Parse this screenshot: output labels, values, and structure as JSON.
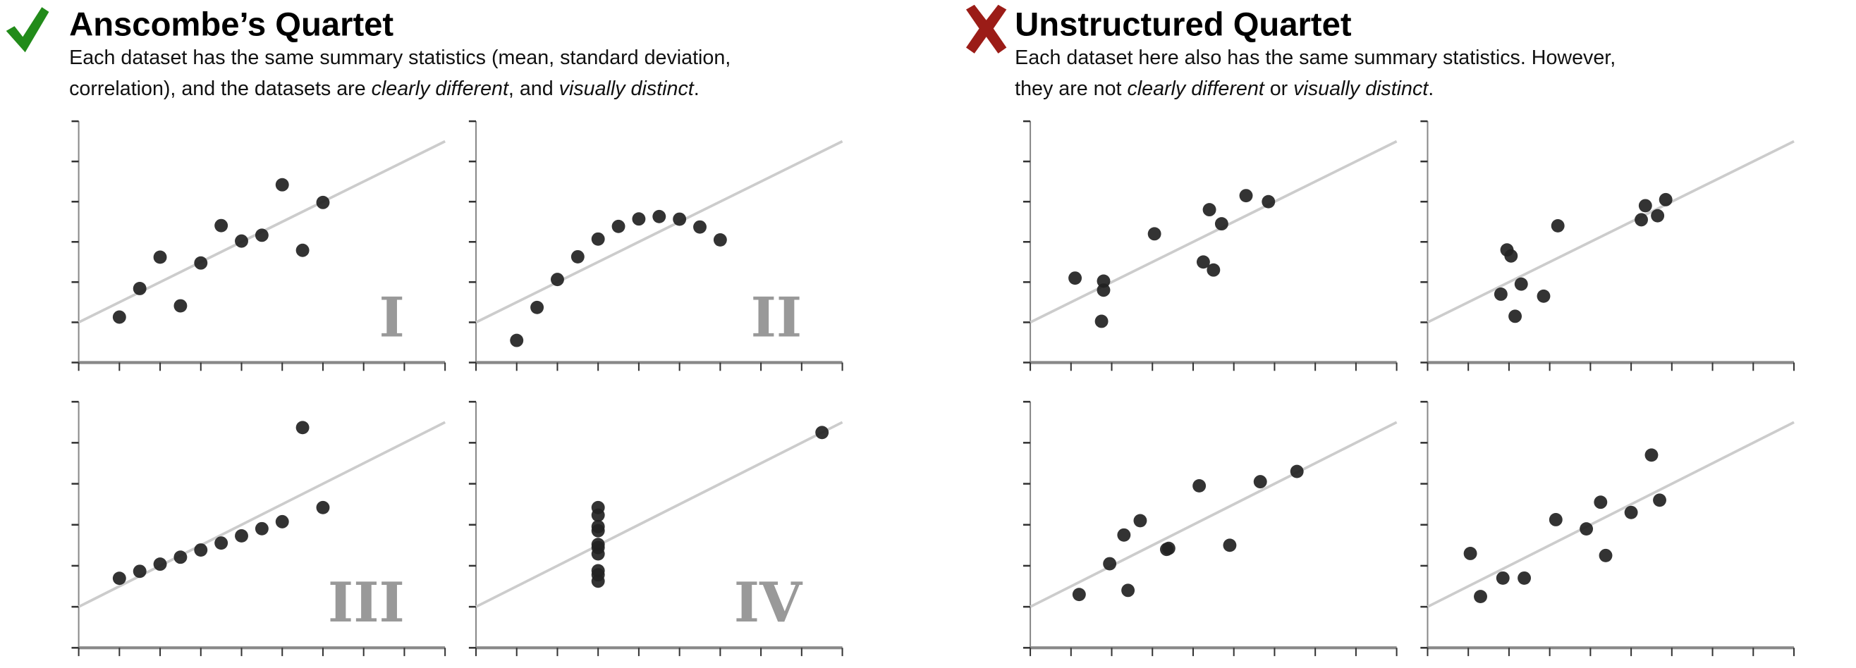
{
  "left": {
    "title": "Anscombe’s Quartet",
    "icon": "check-icon",
    "icon_color": "#228b1a",
    "subtitle_line1": "Each dataset has the same summary statistics (mean, standard deviation,",
    "subtitle_line2_a": "correlation), and the datasets are ",
    "subtitle_line2_b": "clearly different",
    "subtitle_line2_c": ", and ",
    "subtitle_line2_d": "visually distinct",
    "subtitle_line2_e": "."
  },
  "right": {
    "title": "Unstructured Quartet",
    "icon": "cross-icon",
    "icon_color": "#9b1c17",
    "subtitle_line1": "Each dataset here also has the same summary statistics. However,",
    "subtitle_line2_a": "they are not ",
    "subtitle_line2_b": "clearly different",
    "subtitle_line2_c": " or ",
    "subtitle_line2_d": "visually distinct",
    "subtitle_line2_e": "."
  },
  "colors": {
    "point": "#222222",
    "regression": "#cccccc",
    "axis": "#888888",
    "numeral": "#999999"
  },
  "chart_data": [
    {
      "type": "scatter",
      "label": "I",
      "xlim": [
        2,
        20
      ],
      "ylim": [
        2,
        14
      ],
      "xticks_step": 2,
      "yticks_step": 2,
      "grid": false,
      "regression": {
        "intercept": 3,
        "slope": 0.5
      },
      "x": [
        10,
        8,
        13,
        9,
        11,
        14,
        6,
        4,
        12,
        7,
        5
      ],
      "y": [
        8.04,
        6.95,
        7.58,
        8.81,
        8.33,
        9.96,
        7.24,
        4.26,
        10.84,
        4.82,
        5.68
      ]
    },
    {
      "type": "scatter",
      "label": "II",
      "xlim": [
        2,
        20
      ],
      "ylim": [
        2,
        14
      ],
      "xticks_step": 2,
      "yticks_step": 2,
      "grid": false,
      "regression": {
        "intercept": 3,
        "slope": 0.5
      },
      "x": [
        10,
        8,
        13,
        9,
        11,
        14,
        6,
        4,
        12,
        7,
        5
      ],
      "y": [
        9.14,
        8.14,
        8.74,
        8.77,
        9.26,
        8.1,
        6.13,
        3.1,
        9.13,
        7.26,
        4.74
      ]
    },
    {
      "type": "scatter",
      "label": "III",
      "xlim": [
        2,
        20
      ],
      "ylim": [
        2,
        14
      ],
      "xticks_step": 2,
      "yticks_step": 2,
      "grid": false,
      "regression": {
        "intercept": 3,
        "slope": 0.5
      },
      "x": [
        10,
        8,
        13,
        9,
        11,
        14,
        6,
        4,
        12,
        7,
        5
      ],
      "y": [
        7.46,
        6.77,
        12.74,
        7.11,
        7.81,
        8.84,
        6.08,
        5.39,
        8.15,
        6.42,
        5.73
      ]
    },
    {
      "type": "scatter",
      "label": "IV",
      "xlim": [
        2,
        20
      ],
      "ylim": [
        2,
        14
      ],
      "xticks_step": 2,
      "yticks_step": 2,
      "grid": false,
      "regression": {
        "intercept": 3,
        "slope": 0.5
      },
      "x": [
        8,
        8,
        8,
        8,
        8,
        8,
        8,
        19,
        8,
        8,
        8
      ],
      "y": [
        6.58,
        5.76,
        7.71,
        8.84,
        8.47,
        7.04,
        5.25,
        12.5,
        5.56,
        7.91,
        6.89
      ]
    },
    {
      "type": "scatter",
      "label": "",
      "xlim": [
        2,
        20
      ],
      "ylim": [
        2,
        14
      ],
      "xticks_step": 2,
      "yticks_step": 2,
      "grid": false,
      "regression": {
        "intercept": 3,
        "slope": 0.5
      },
      "x": [
        4.2,
        5.6,
        5.6,
        5.5,
        8.1,
        10.8,
        11.4,
        10.5,
        11.0,
        12.6,
        13.7
      ],
      "y": [
        6.2,
        6.05,
        5.6,
        4.05,
        8.4,
        9.6,
        8.9,
        7.0,
        6.6,
        10.3,
        10.0
      ]
    },
    {
      "type": "scatter",
      "label": "",
      "xlim": [
        2,
        20
      ],
      "ylim": [
        2,
        14
      ],
      "xticks_step": 2,
      "yticks_step": 2,
      "grid": false,
      "regression": {
        "intercept": 3,
        "slope": 0.5
      },
      "x": [
        8.4,
        5.9,
        6.1,
        6.6,
        5.6,
        7.7,
        6.3,
        12.7,
        12.5,
        13.3,
        13.7
      ],
      "y": [
        8.8,
        7.6,
        7.3,
        5.9,
        5.4,
        5.3,
        4.3,
        9.8,
        9.1,
        9.3,
        10.1
      ]
    },
    {
      "type": "scatter",
      "label": "",
      "xlim": [
        2,
        20
      ],
      "ylim": [
        2,
        14
      ],
      "xticks_step": 2,
      "yticks_step": 2,
      "grid": false,
      "regression": {
        "intercept": 3,
        "slope": 0.5
      },
      "x": [
        4.4,
        6.8,
        5.9,
        6.6,
        7.4,
        8.7,
        8.8,
        10.3,
        11.8,
        13.3,
        15.1
      ],
      "y": [
        4.6,
        4.8,
        6.1,
        7.5,
        8.2,
        6.8,
        6.85,
        9.9,
        7.0,
        10.1,
        10.6
      ]
    },
    {
      "type": "scatter",
      "label": "",
      "xlim": [
        2,
        20
      ],
      "ylim": [
        2,
        14
      ],
      "xticks_step": 2,
      "yticks_step": 2,
      "grid": false,
      "regression": {
        "intercept": 3,
        "slope": 0.5
      },
      "x": [
        4.1,
        4.6,
        5.7,
        6.75,
        8.3,
        9.8,
        10.5,
        10.75,
        12.0,
        13.0,
        13.4
      ],
      "y": [
        6.6,
        4.5,
        5.4,
        5.4,
        8.25,
        7.8,
        9.1,
        6.5,
        8.6,
        11.4,
        9.2
      ]
    }
  ]
}
